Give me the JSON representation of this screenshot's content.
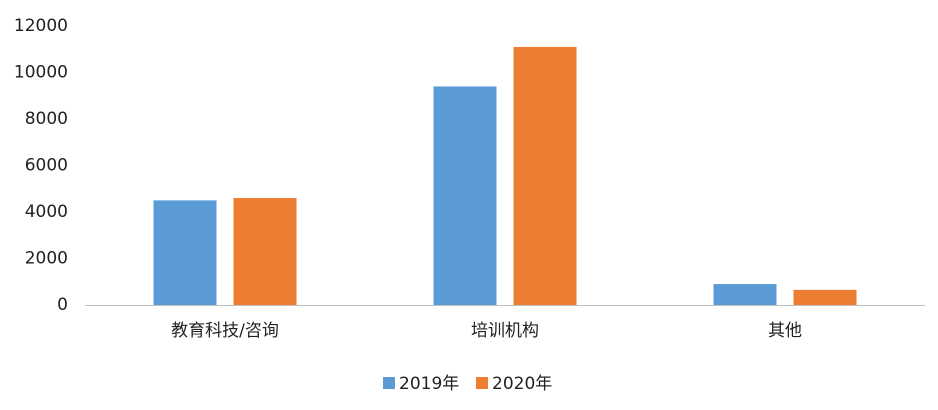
{
  "chart_data": {
    "type": "bar",
    "categories": [
      "教育科技/咨询",
      "培训机构",
      "其他"
    ],
    "series": [
      {
        "name": "2019年",
        "color": "#5b9bd5",
        "values": [
          4500,
          9400,
          900
        ]
      },
      {
        "name": "2020年",
        "color": "#ed7d31",
        "values": [
          4600,
          11100,
          650
        ]
      }
    ],
    "ylim": [
      0,
      12000
    ],
    "yticks": [
      0,
      2000,
      4000,
      6000,
      8000,
      10000,
      12000
    ],
    "grid": false,
    "legend": "bottom"
  }
}
